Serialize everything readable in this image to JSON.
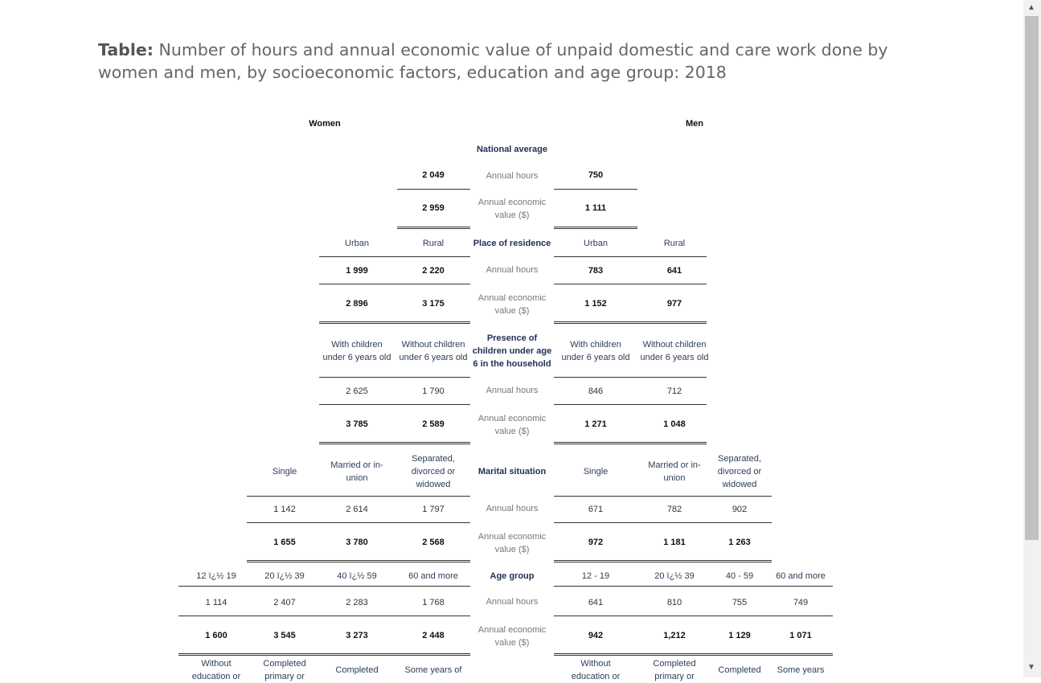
{
  "title": {
    "prefix": "Table:",
    "text": "Number of hours and annual economic value of unpaid domestic and care work done by women and men, by socioeconomic factors, education and age group: 2018"
  },
  "headers": {
    "women": "Women",
    "men": "Men"
  },
  "rows": {
    "annual_hours": "Annual hours",
    "annual_value": "Annual economic value ($)"
  },
  "national": {
    "heading": "National average",
    "women_hours": "2 049",
    "women_value": "2 959",
    "men_hours": "750",
    "men_value": "1 111"
  },
  "residence": {
    "heading": "Place of residence",
    "women_cols": [
      "Urban",
      "Rural"
    ],
    "men_cols": [
      "Urban",
      "Rural"
    ],
    "women_hours": [
      "1 999",
      "2 220"
    ],
    "men_hours": [
      "783",
      "641"
    ],
    "women_value": [
      "2 896",
      "3 175"
    ],
    "men_value": [
      "1 152",
      "977"
    ]
  },
  "children": {
    "heading": "Presence of children under age 6 in the household",
    "women_cols": [
      "With children under 6 years old",
      "Without children under 6 years old"
    ],
    "men_cols": [
      "With children under 6 years old",
      "Without children under 6 years old"
    ],
    "women_hours": [
      "2 625",
      "1 790"
    ],
    "men_hours": [
      "846",
      "712"
    ],
    "women_value": [
      "3 785",
      "2 589"
    ],
    "men_value": [
      "1 271",
      "1 048"
    ]
  },
  "marital": {
    "heading": "Marital situation",
    "women_cols": [
      "Single",
      "Married or in-union",
      "Separated, divorced or widowed"
    ],
    "men_cols": [
      "Single",
      "Married or in-union",
      "Separated, divorced or widowed"
    ],
    "women_hours": [
      "1 142",
      "2 614",
      "1 797"
    ],
    "men_hours": [
      "671",
      "782",
      "902"
    ],
    "women_value": [
      "1 655",
      "3 780",
      "2 568"
    ],
    "men_value": [
      "972",
      "1 181",
      "1 263"
    ]
  },
  "age": {
    "heading": "Age group",
    "women_cols": [
      "12 ï¿½ 19",
      "20 ï¿½ 39",
      "40 ï¿½ 59",
      "60 and more"
    ],
    "men_cols": [
      "12 - 19",
      "20 ï¿½ 39",
      "40 - 59",
      "60 and more"
    ],
    "women_hours": [
      "1 114",
      "2 407",
      "2 283",
      "1 768"
    ],
    "men_hours": [
      "641",
      "810",
      "755",
      "749"
    ],
    "women_value": [
      "1 600",
      "3 545",
      "3 273",
      "2 448"
    ],
    "men_value": [
      "942",
      "1,212",
      "1 129",
      "1 071"
    ]
  },
  "education": {
    "women_cols": [
      "Without education or",
      "Completed primary or",
      "Completed",
      "Some years of"
    ],
    "men_cols": [
      "Without education or",
      "Completed primary or",
      "Completed",
      "Some years"
    ]
  }
}
